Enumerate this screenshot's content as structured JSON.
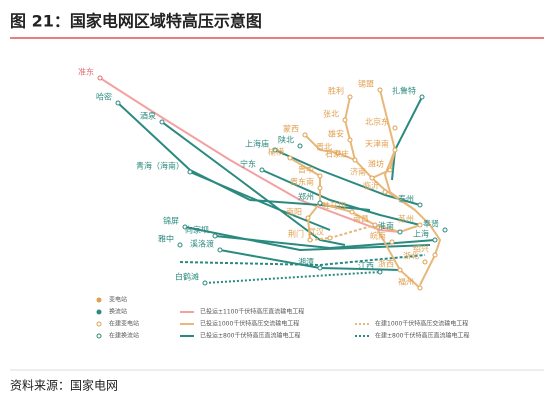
{
  "title": "图 21：国家电网区域特高压示意图",
  "nodes": [
    {
      "label": "准东"
    },
    {
      "label": "哈密"
    },
    {
      "label": "酒泉"
    },
    {
      "label": "青海（海南）"
    },
    {
      "label": "宁东"
    },
    {
      "label": "上海庙"
    },
    {
      "label": "陕北"
    },
    {
      "label": "蒙西"
    },
    {
      "label": "锡盟"
    },
    {
      "label": "胜利"
    },
    {
      "label": "扎鲁特"
    },
    {
      "label": "张北"
    },
    {
      "label": "北京东"
    },
    {
      "label": "雄安"
    },
    {
      "label": "天津南"
    },
    {
      "label": "榆横"
    },
    {
      "label": "晋北"
    },
    {
      "label": "石家庄"
    },
    {
      "label": "济南"
    },
    {
      "label": "晋中"
    },
    {
      "label": "潍坊"
    },
    {
      "label": "临沂"
    },
    {
      "label": "晋东南"
    },
    {
      "label": "南阳"
    },
    {
      "label": "郑州"
    },
    {
      "label": "驻马店"
    },
    {
      "label": "荆门"
    },
    {
      "label": "武汉"
    },
    {
      "label": "南昌"
    },
    {
      "label": "泰州"
    },
    {
      "label": "苏州"
    },
    {
      "label": "淮南"
    },
    {
      "label": "皖南"
    },
    {
      "label": "上海"
    },
    {
      "label": "绍兴"
    },
    {
      "label": "奉贤"
    },
    {
      "label": "锦屏"
    },
    {
      "label": "向家坝"
    },
    {
      "label": "雅中"
    },
    {
      "label": "溪洛渡"
    },
    {
      "label": "白鹤滩"
    },
    {
      "label": "湘潭"
    },
    {
      "label": "江西"
    },
    {
      "label": "浙西"
    },
    {
      "label": "福州"
    },
    {
      "label": "浙北"
    }
  ],
  "legend": [
    {
      "label": "变电站"
    },
    {
      "label": "换流站"
    },
    {
      "label": "在建变电站"
    },
    {
      "label": "在建换流站"
    },
    {
      "label": "已投运±1100千伏特高压直流输电工程"
    },
    {
      "label": "已投运1000千伏特高压交流输电工程"
    },
    {
      "label": "已投运±800千伏特高压直流输电工程"
    },
    {
      "label": "在建1000千伏特高压交流输电工程"
    },
    {
      "label": "在建±800千伏特高压直流输电工程"
    }
  ],
  "source": "资料来源：国家电网"
}
